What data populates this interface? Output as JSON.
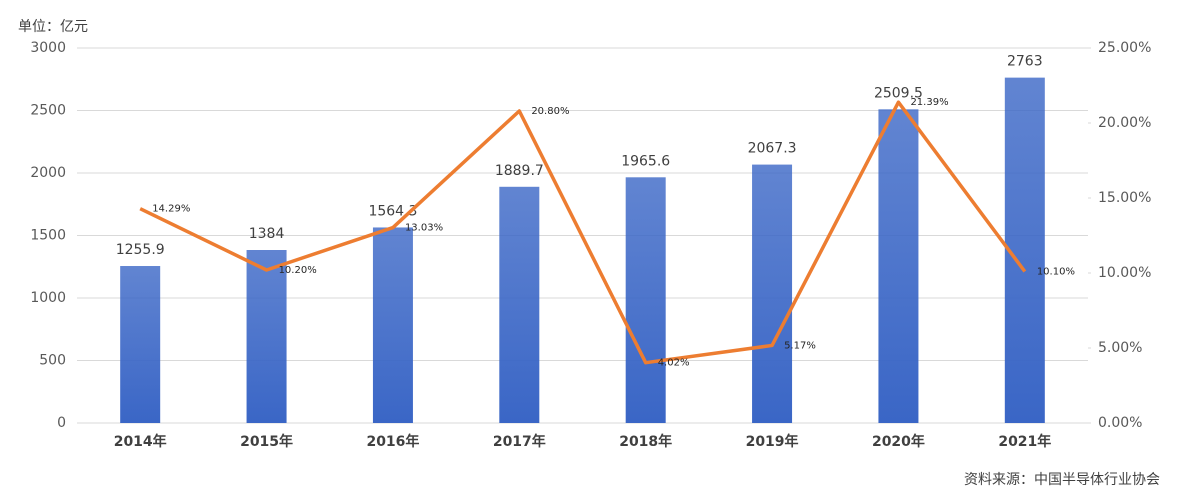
{
  "chart_data": {
    "type": "bar",
    "unit_label": "单位：亿元",
    "source": "资料来源：中国半导体行业协会",
    "categories": [
      "2014年",
      "2015年",
      "2016年",
      "2017年",
      "2018年",
      "2019年",
      "2020年",
      "2021年"
    ],
    "series": [
      {
        "type": "bar",
        "color": "#3a66c6",
        "values": [
          1255.9,
          1384,
          1564.3,
          1889.7,
          1965.6,
          2067.3,
          2509.5,
          2763
        ]
      },
      {
        "type": "line",
        "axis": "y2",
        "color": "#ed7d31",
        "values": [
          14.29,
          10.2,
          13.03,
          20.8,
          4.02,
          5.17,
          21.39,
          10.1
        ],
        "value_labels": [
          "14.29%",
          "10.20%",
          "13.03%",
          "20.80%",
          "4.02%",
          "5.17%",
          "21.39%",
          "10.10%"
        ]
      }
    ],
    "ylim": [
      0,
      3000
    ],
    "yticks": [
      0,
      500,
      1000,
      1500,
      2000,
      2500,
      3000
    ],
    "y2lim": [
      0,
      25
    ],
    "y2ticks": [
      {
        "value": 0,
        "label": "0.00%"
      },
      {
        "value": 5,
        "label": "5.00%"
      },
      {
        "value": 10,
        "label": "10.00%"
      },
      {
        "value": 15,
        "label": "15.00%"
      },
      {
        "value": 20,
        "label": "20.00%"
      },
      {
        "value": 25,
        "label": "25.00%"
      }
    ],
    "grid": true
  }
}
